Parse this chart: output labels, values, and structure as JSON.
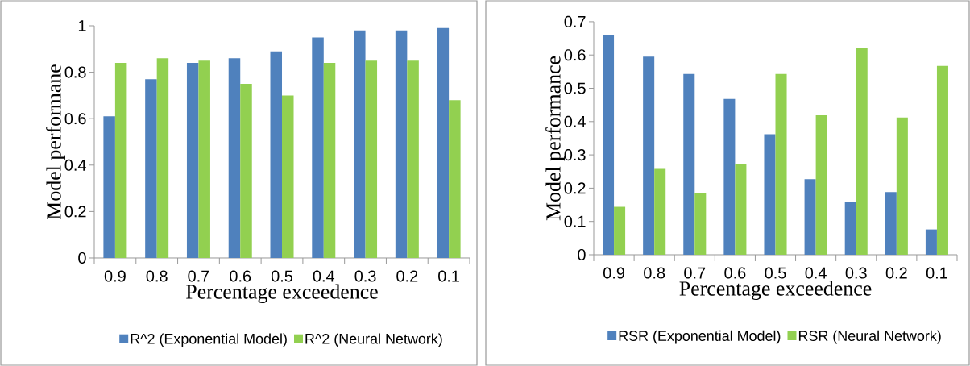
{
  "chart_data": [
    {
      "type": "bar",
      "xlabel": "Percentage exceedence",
      "ylabel": "Model performane",
      "categories": [
        "0.9",
        "0.8",
        "0.7",
        "0.6",
        "0.5",
        "0.4",
        "0.3",
        "0.2",
        "0.1"
      ],
      "series": [
        {
          "name": "R^2 (Exponential Model)",
          "color": "#4f81bd",
          "values": [
            0.61,
            0.77,
            0.84,
            0.86,
            0.89,
            0.95,
            0.98,
            0.98,
            0.99
          ]
        },
        {
          "name": "R^2 (Neural Network)",
          "color": "#92d050",
          "values": [
            0.84,
            0.86,
            0.85,
            0.75,
            0.7,
            0.84,
            0.85,
            0.85,
            0.68
          ]
        }
      ],
      "ylim": [
        0,
        1
      ],
      "yticks": [
        0,
        0.2,
        0.4,
        0.6,
        0.8,
        1
      ],
      "grid": false,
      "legend": "bottom"
    },
    {
      "type": "bar",
      "xlabel": "Percentage exceedence",
      "ylabel": "Model performance",
      "categories": [
        "0.9",
        "0.8",
        "0.7",
        "0.6",
        "0.5",
        "0.4",
        "0.3",
        "0.2",
        "0.1"
      ],
      "series": [
        {
          "name": "RSR (Exponential Model)",
          "color": "#4f81bd",
          "values": [
            0.661,
            0.595,
            0.543,
            0.468,
            0.362,
            0.227,
            0.159,
            0.188,
            0.076
          ]
        },
        {
          "name": "RSR (Neural Network)",
          "color": "#92d050",
          "values": [
            0.144,
            0.258,
            0.186,
            0.272,
            0.543,
            0.419,
            0.621,
            0.412,
            0.567
          ]
        }
      ],
      "ylim": [
        0,
        0.7
      ],
      "yticks": [
        0,
        0.1,
        0.2,
        0.3,
        0.4,
        0.5,
        0.6,
        0.7
      ],
      "grid": false,
      "legend": "bottom"
    }
  ]
}
